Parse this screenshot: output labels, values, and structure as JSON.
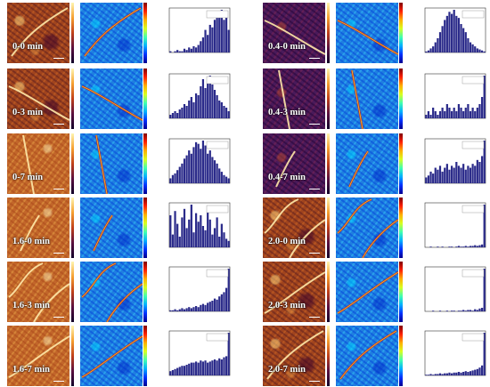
{
  "panels": [
    {
      "label": "0-0 min",
      "afm": "",
      "hist": [
        1,
        0,
        1,
        2,
        1,
        1,
        3,
        2,
        4,
        3,
        5,
        4,
        6,
        9,
        12,
        18,
        14,
        22,
        20,
        26,
        30,
        28,
        34,
        26,
        30,
        18
      ]
    },
    {
      "label": "0-3 min",
      "afm": "",
      "hist": [
        2,
        3,
        4,
        3,
        5,
        6,
        8,
        7,
        10,
        12,
        9,
        14,
        13,
        18,
        22,
        17,
        20,
        24,
        19,
        16,
        13,
        10,
        9,
        7,
        6,
        4
      ]
    },
    {
      "label": "0-7 min",
      "afm": "light",
      "hist": [
        3,
        5,
        6,
        8,
        10,
        12,
        15,
        17,
        20,
        18,
        22,
        25,
        24,
        21,
        26,
        23,
        18,
        20,
        16,
        14,
        12,
        9,
        7,
        5,
        4,
        3
      ]
    },
    {
      "label": "1.6-0 min",
      "afm": "light",
      "hist": [
        30,
        12,
        34,
        22,
        10,
        28,
        36,
        18,
        26,
        40,
        14,
        32,
        24,
        30,
        20,
        16,
        34,
        26,
        12,
        18,
        28,
        10,
        22,
        14,
        8,
        6
      ]
    },
    {
      "label": "1.6-3 min",
      "afm": "light",
      "hist": [
        1,
        1,
        2,
        1,
        2,
        3,
        2,
        3,
        4,
        3,
        4,
        5,
        4,
        6,
        7,
        6,
        8,
        9,
        10,
        12,
        11,
        14,
        16,
        18,
        22,
        40
      ]
    },
    {
      "label": "1.6-7 min",
      "afm": "light",
      "hist": [
        4,
        5,
        6,
        7,
        8,
        9,
        9,
        10,
        11,
        12,
        12,
        13,
        12,
        14,
        13,
        14,
        12,
        13,
        14,
        15,
        14,
        16,
        15,
        17,
        18,
        40
      ]
    },
    {
      "label": "0.4-0 min",
      "afm": "dark",
      "hist": [
        1,
        2,
        4,
        6,
        10,
        14,
        20,
        26,
        32,
        36,
        40,
        38,
        42,
        36,
        34,
        28,
        24,
        20,
        14,
        10,
        8,
        6,
        4,
        3,
        2,
        1
      ]
    },
    {
      "label": "0.4-3 min",
      "afm": "dark",
      "hist": [
        1,
        2,
        1,
        3,
        2,
        1,
        2,
        3,
        2,
        4,
        3,
        2,
        3,
        2,
        4,
        3,
        2,
        3,
        4,
        2,
        3,
        2,
        3,
        4,
        6,
        12
      ]
    },
    {
      "label": "0.4-7 min",
      "afm": "dark",
      "hist": [
        3,
        4,
        6,
        5,
        8,
        7,
        9,
        6,
        8,
        10,
        7,
        9,
        8,
        11,
        9,
        8,
        10,
        7,
        9,
        8,
        10,
        9,
        12,
        11,
        14,
        22
      ]
    },
    {
      "label": "2.0-0 min",
      "afm": "",
      "hist": [
        0,
        0,
        1,
        0,
        0,
        1,
        0,
        1,
        0,
        0,
        1,
        1,
        0,
        1,
        2,
        1,
        1,
        2,
        1,
        2,
        2,
        3,
        2,
        3,
        4,
        60
      ]
    },
    {
      "label": "2.0-3 min",
      "afm": "",
      "hist": [
        0,
        0,
        0,
        1,
        0,
        0,
        1,
        0,
        0,
        1,
        0,
        1,
        1,
        0,
        1,
        1,
        2,
        1,
        2,
        2,
        1,
        3,
        2,
        4,
        5,
        60
      ]
    },
    {
      "label": "2.0-7 min",
      "afm": "",
      "hist": [
        1,
        1,
        2,
        1,
        2,
        2,
        3,
        2,
        3,
        3,
        4,
        3,
        4,
        4,
        5,
        4,
        5,
        6,
        5,
        6,
        7,
        8,
        9,
        11,
        14,
        60
      ]
    }
  ]
}
